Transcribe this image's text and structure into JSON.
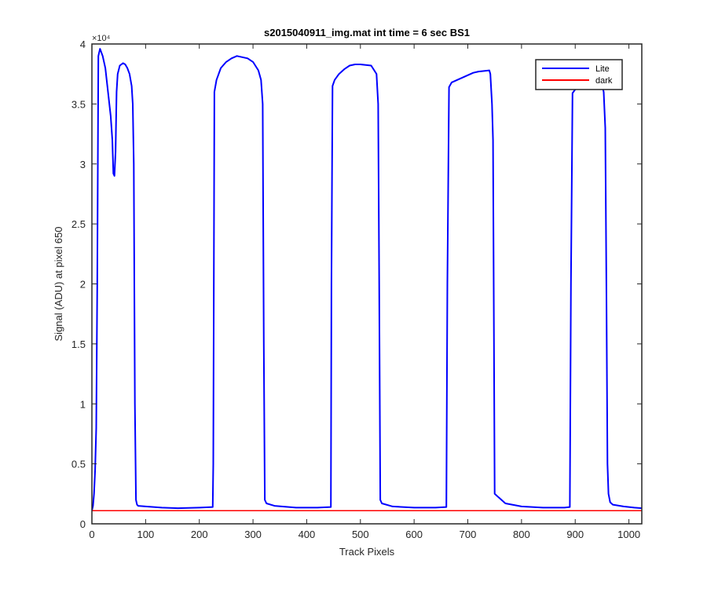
{
  "chart_data": {
    "type": "line",
    "title": "s2015040911_img.mat int time = 6 sec   BS1",
    "xlabel": "Track Pixels",
    "ylabel": "Signal (ADU) at pixel 650",
    "y_exponent_label": "×10⁴",
    "xlim": [
      0,
      1024
    ],
    "ylim": [
      0,
      40000
    ],
    "xticks": [
      0,
      100,
      200,
      300,
      400,
      500,
      600,
      700,
      800,
      900,
      1000
    ],
    "xtick_labels": [
      "0",
      "100",
      "200",
      "300",
      "400",
      "500",
      "600",
      "700",
      "800",
      "900",
      "1000"
    ],
    "yticks": [
      0,
      5000,
      10000,
      15000,
      20000,
      25000,
      30000,
      35000,
      40000
    ],
    "ytick_labels": [
      "0",
      "0.5",
      "1",
      "1.5",
      "2",
      "2.5",
      "3",
      "3.5",
      "4"
    ],
    "grid": false,
    "legend": {
      "position": "top-right"
    },
    "series": [
      {
        "name": "Lite",
        "color": "#0000ff",
        "x": [
          0,
          2,
          4,
          6,
          8,
          10,
          12,
          15,
          20,
          25,
          30,
          35,
          38,
          40,
          42,
          44,
          46,
          48,
          52,
          58,
          62,
          66,
          70,
          74,
          76,
          78,
          80,
          82,
          84,
          86,
          100,
          130,
          160,
          200,
          225,
          226,
          228,
          232,
          240,
          250,
          260,
          270,
          280,
          290,
          300,
          310,
          315,
          318,
          320,
          322,
          325,
          340,
          380,
          420,
          445,
          446,
          448,
          452,
          460,
          470,
          480,
          490,
          500,
          520,
          530,
          533,
          535,
          537,
          540,
          560,
          600,
          640,
          660,
          662,
          665,
          670,
          690,
          710,
          720,
          740,
          742,
          745,
          747,
          750,
          770,
          800,
          840,
          880,
          890,
          892,
          895,
          900,
          910,
          920,
          940,
          950,
          953,
          956,
          958,
          960,
          962,
          965,
          970,
          990,
          1010,
          1024
        ],
        "y": [
          1100,
          1500,
          2500,
          4500,
          8000,
          20000,
          39000,
          39600,
          39000,
          38000,
          36000,
          34000,
          32000,
          29200,
          29000,
          31000,
          36000,
          37500,
          38200,
          38400,
          38300,
          38000,
          37500,
          36500,
          35000,
          30000,
          10000,
          2000,
          1600,
          1500,
          1450,
          1350,
          1300,
          1350,
          1400,
          5000,
          36000,
          37000,
          38000,
          38500,
          38800,
          39000,
          38900,
          38800,
          38500,
          37800,
          37000,
          35000,
          15000,
          2000,
          1700,
          1500,
          1350,
          1350,
          1400,
          20000,
          36500,
          37000,
          37500,
          37900,
          38200,
          38300,
          38300,
          38200,
          37500,
          35000,
          20000,
          2000,
          1700,
          1450,
          1350,
          1350,
          1400,
          20000,
          36400,
          36800,
          37200,
          37600,
          37700,
          37800,
          37500,
          35000,
          32000,
          2500,
          1700,
          1450,
          1350,
          1350,
          1400,
          20000,
          35900,
          36200,
          36500,
          36700,
          36800,
          36600,
          36000,
          33000,
          20000,
          5000,
          2500,
          1800,
          1600,
          1450,
          1350,
          1300
        ]
      },
      {
        "name": "dark",
        "color": "#ff0000",
        "x": [
          0,
          1024
        ],
        "y": [
          1100,
          1100
        ]
      }
    ]
  }
}
